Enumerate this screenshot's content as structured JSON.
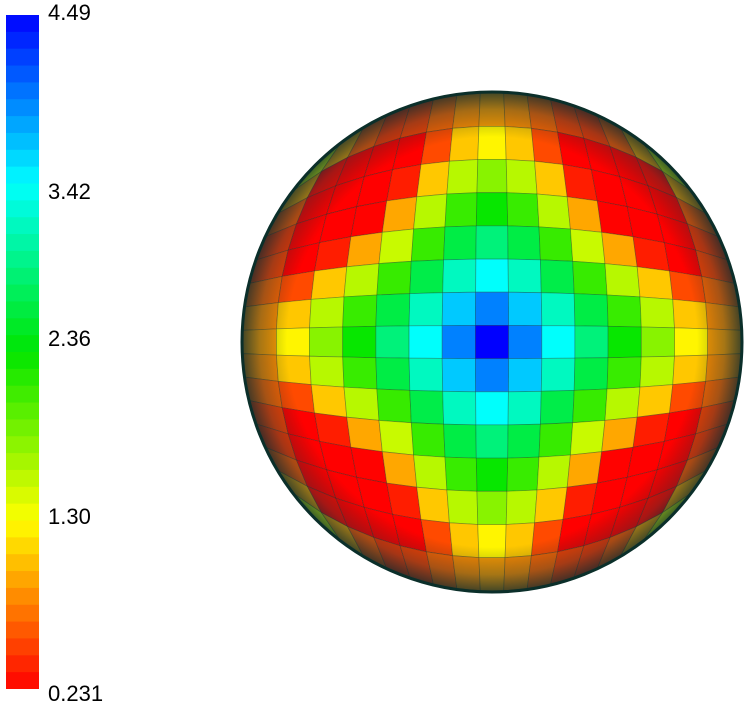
{
  "legend": {
    "ticks": [
      "4.49",
      "3.42",
      "2.36",
      "1.30",
      "0.231"
    ],
    "max": 4.49,
    "min": 0.231,
    "steps": 40
  },
  "field": {
    "grid_size": 15,
    "outline_color": "#0b2f2a"
  }
}
